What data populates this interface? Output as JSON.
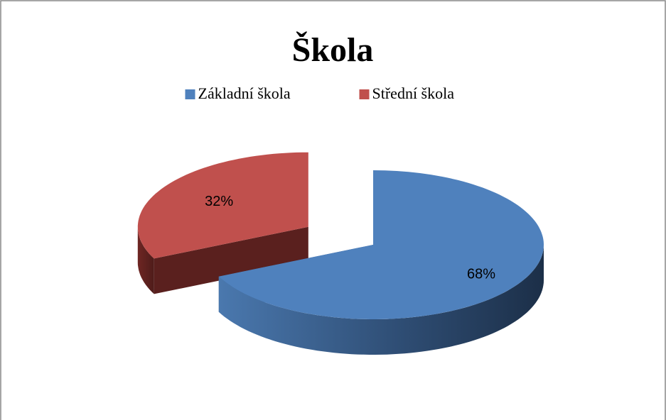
{
  "chart_data": {
    "type": "pie3d",
    "title": "Škola",
    "categories": [
      "Základní škola",
      "Střední škola"
    ],
    "values": [
      68,
      32
    ],
    "value_labels": [
      "68%",
      "32%"
    ],
    "colors": [
      "#4f81bd",
      "#c0504d"
    ],
    "legend": "top",
    "exploded": [
      false,
      true
    ]
  }
}
